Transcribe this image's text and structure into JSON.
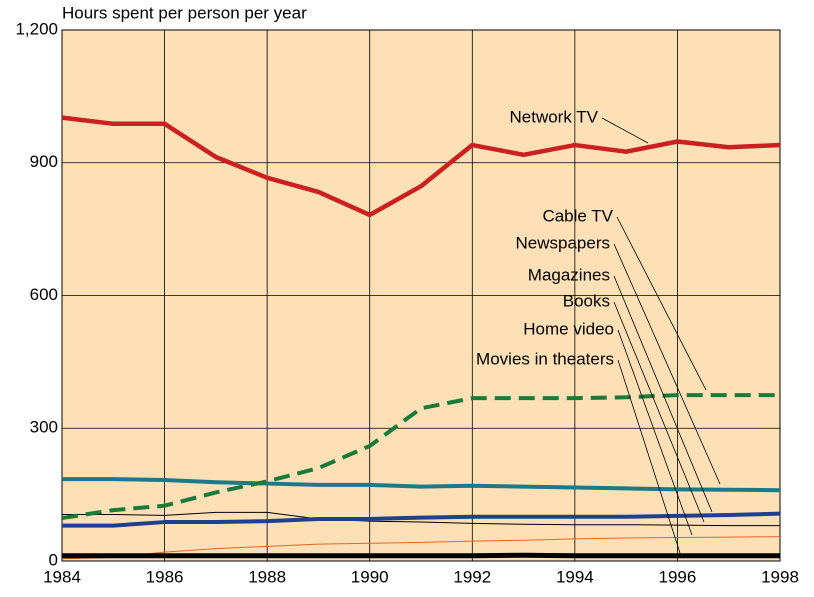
{
  "chart_data": {
    "type": "line",
    "y_label": "Hours spent per person per year",
    "x": [
      1984,
      1985,
      1986,
      1987,
      1988,
      1989,
      1990,
      1991,
      1992,
      1993,
      1994,
      1995,
      1996,
      1997,
      1998
    ],
    "xlim": [
      1984,
      1998
    ],
    "xticks": [
      1984,
      1986,
      1988,
      1990,
      1992,
      1994,
      1996,
      1998
    ],
    "ylim": [
      0,
      1200
    ],
    "yticks": [
      0,
      300,
      600,
      900,
      {
        "value": 1200,
        "label": "1,200"
      }
    ],
    "grid": true,
    "series": [
      {
        "name": "Network TV",
        "color": "#cc1f1f",
        "values": [
          1002,
          988,
          988,
          913,
          866,
          834,
          782,
          847,
          940,
          918,
          940,
          925,
          948,
          935,
          940
        ]
      },
      {
        "name": "Cable TV",
        "color": "#1a7a3a",
        "values": [
          97,
          115,
          125,
          155,
          180,
          210,
          260,
          345,
          368,
          368,
          368,
          370,
          375,
          375,
          375
        ]
      },
      {
        "name": "Newspapers",
        "color": "#1a7a8a",
        "values": [
          185,
          185,
          183,
          178,
          175,
          172,
          172,
          168,
          170,
          168,
          166,
          164,
          162,
          161,
          160
        ]
      },
      {
        "name": "Magazines",
        "color": "#000000",
        "values": [
          105,
          105,
          103,
          110,
          110,
          95,
          90,
          88,
          85,
          83,
          82,
          82,
          81,
          80,
          80
        ]
      },
      {
        "name": "Books",
        "color": "#1f3f8f",
        "values": [
          80,
          80,
          88,
          88,
          90,
          95,
          95,
          98,
          100,
          100,
          100,
          100,
          102,
          104,
          107
        ]
      },
      {
        "name": "Home video",
        "color": "#e8622a",
        "values": [
          5,
          8,
          20,
          28,
          33,
          38,
          40,
          42,
          45,
          47,
          50,
          52,
          53,
          54,
          55
        ]
      },
      {
        "name": "Movies in theaters",
        "color": "#000000",
        "values": [
          12,
          12,
          12,
          12,
          12,
          12,
          12,
          12,
          12,
          13,
          12,
          12,
          12,
          12,
          12
        ]
      }
    ]
  }
}
